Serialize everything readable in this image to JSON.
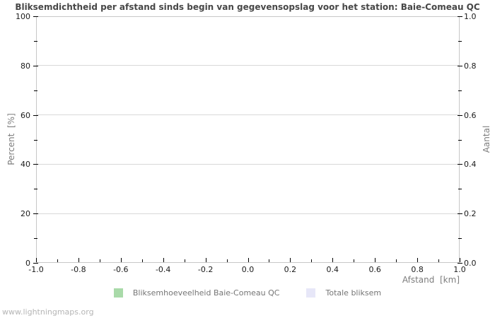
{
  "page": {
    "watermark": "www.lightningmaps.org"
  },
  "chart_data": {
    "type": "line",
    "title": "Bliksemdichtheid per afstand sinds begin van gegevensopslag voor het station: Baie-Comeau QC",
    "xlabel": "Afstand  [km]",
    "ylabel_left": "Percent  [%]",
    "ylabel_right": "Aantal",
    "x_axis": {
      "min": -1.0,
      "max": 1.0,
      "major_ticks": [
        -1.0,
        -0.8,
        -0.6,
        -0.4,
        -0.2,
        0.0,
        0.2,
        0.4,
        0.6,
        0.8,
        1.0
      ],
      "major_labels": [
        "-1.0",
        "-0.8",
        "-0.6",
        "-0.4",
        "-0.2",
        "0.0",
        "0.2",
        "0.4",
        "0.6",
        "0.8",
        "1.0"
      ],
      "minor_ticks": [
        -0.9,
        -0.7,
        -0.5,
        -0.3,
        -0.1,
        0.1,
        0.3,
        0.5,
        0.7,
        0.9
      ]
    },
    "y_left_axis": {
      "min": 0,
      "max": 100,
      "major_ticks": [
        0,
        20,
        40,
        60,
        80,
        100
      ],
      "major_labels": [
        "0",
        "20",
        "40",
        "60",
        "80",
        "100"
      ],
      "minor_ticks": [
        10,
        30,
        50,
        70,
        90
      ]
    },
    "y_right_axis": {
      "min": 0.0,
      "max": 1.0,
      "major_ticks": [
        0.0,
        0.2,
        0.4,
        0.6,
        0.8,
        1.0
      ],
      "major_labels": [
        "0.0",
        "0.2",
        "0.4",
        "0.6",
        "0.8",
        "1.0"
      ],
      "minor_ticks": [
        0.1,
        0.3,
        0.5,
        0.7,
        0.9
      ]
    },
    "grid": {
      "horizontal": true,
      "vertical": false
    },
    "legend": [
      {
        "label": "Bliksemhoeveelheid Baie-Comeau QC",
        "color": "#a9daa9"
      },
      {
        "label": "Totale bliksem",
        "color": "#e7e7f8"
      }
    ],
    "series": [
      {
        "name": "Bliksemhoeveelheid Baie-Comeau QC",
        "color": "#a9daa9",
        "x": [],
        "values": []
      },
      {
        "name": "Totale bliksem",
        "color": "#e7e7f8",
        "x": [],
        "values": []
      }
    ],
    "colors": {
      "grid": "#d9d9d9",
      "border": "#c7c7c7",
      "tick": "#000000",
      "tick_label": "#1a1a1a",
      "axis_title": "#7d7d7d",
      "title": "#474747",
      "watermark": "#b5b5b5"
    }
  }
}
